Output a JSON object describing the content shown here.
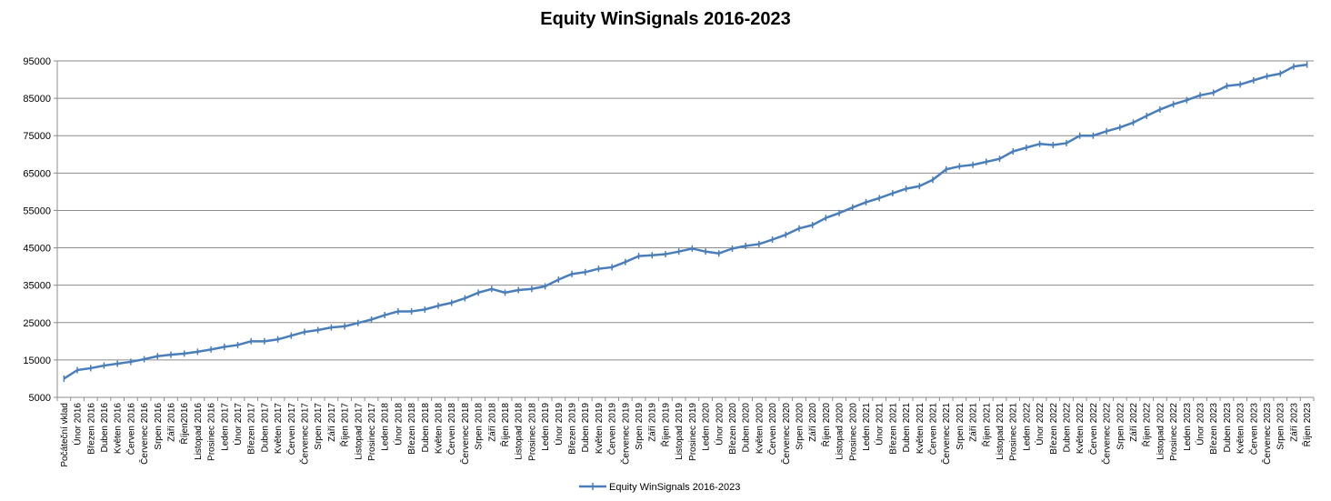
{
  "chart_data": {
    "type": "line",
    "title": "Equity WinSignals 2016-2023",
    "xlabel": "",
    "ylabel": "",
    "ylim": [
      5000,
      95000
    ],
    "yticks": [
      5000,
      15000,
      25000,
      35000,
      45000,
      55000,
      65000,
      75000,
      85000,
      95000
    ],
    "grid": true,
    "legend_position": "bottom",
    "line_color": "#4a7ebb",
    "categories": [
      "Počáteční vklad",
      "Únor 2016",
      "Březen 2016",
      "Duben 2016",
      "Květen 2016",
      "Červen 2016",
      "Červenec 2016",
      "Srpen 2016",
      "Září 2016",
      "Říjen2016",
      "Listopad 2016",
      "Prosinec 2016",
      "Leden 2017",
      "Únor 2017",
      "Březen 2017",
      "Duben 2017",
      "Květen 2017",
      "Červen 2017",
      "Červenec 2017",
      "Srpen 2017",
      "Září 2017",
      "Říjen 2017",
      "Listopad 2017",
      "Prosinec 2017",
      "Leden 2018",
      "Únor 2018",
      "Březen 2018",
      "Duben 2018",
      "Květen 2018",
      "Červen 2018",
      "Červenec 2018",
      "Srpen 2018",
      "Září 2018",
      "Říjen 2018",
      "Listopad 2018",
      "Prosinec 2018",
      "Leden 2019",
      "Únor 2019",
      "Březen 2019",
      "Duben 2019",
      "Květen 2019",
      "Červen 2019",
      "Červenec 2019",
      "Srpen 2019",
      "Září 2019",
      "Říjen 2019",
      "Listopad 2019",
      "Prosinec 2019",
      "Leden 2020",
      "Únor 2020",
      "Březen 2020",
      "Duben 2020",
      "Květen 2020",
      "Červen 2020",
      "Červenec 2020",
      "Srpen 2020",
      "Září 2020",
      "Říjen 2020",
      "Listopad 2020",
      "Prosinec 2020",
      "Leden 2021",
      "Únor 2021",
      "Březen 2021",
      "Duben 2021",
      "Květen 2021",
      "Červen 2021",
      "Červenec 2021",
      "Srpen 2021",
      "Září 2021",
      "Říjen 2021",
      "Listopad 2021",
      "Prosinec 2021",
      "Leden 2022",
      "Únor 2022",
      "Březen 2022",
      "Duben 2022",
      "Květen 2022",
      "Červen 2022",
      "Červenec 2022",
      "Srpen 2022",
      "Září 2022",
      "Říjen 2022",
      "Listopad 2022",
      "Prosinec 2022",
      "Leden 2023",
      "Únor 2023",
      "Březen 2023",
      "Duben 2023",
      "Květen 2023",
      "Červen 2023",
      "Červenec 2023",
      "Srpen 2023",
      "Září 2023",
      "Říjen 2023"
    ],
    "series": [
      {
        "name": "Equity WinSignals 2016-2023",
        "values": [
          10000,
          12300,
          12800,
          13500,
          14000,
          14500,
          15200,
          16000,
          16400,
          16700,
          17200,
          17800,
          18500,
          19000,
          20000,
          20000,
          20500,
          21500,
          22500,
          23000,
          23700,
          24000,
          24900,
          25800,
          27000,
          28000,
          28000,
          28500,
          29500,
          30300,
          31500,
          33000,
          34000,
          33000,
          33700,
          34000,
          34700,
          36500,
          38000,
          38500,
          39400,
          39800,
          41200,
          42800,
          43000,
          43300,
          44000,
          44800,
          44000,
          43500,
          44800,
          45500,
          46000,
          47200,
          48500,
          50200,
          51100,
          53000,
          54300,
          55800,
          57200,
          58300,
          59600,
          60800,
          61500,
          63200,
          66000,
          66800,
          67200,
          68000,
          68800,
          70800,
          71800,
          72800,
          72500,
          73000,
          75000,
          75000,
          76200,
          77200,
          78500,
          80300,
          82000,
          83400,
          84500,
          85800,
          86500,
          88300,
          88700,
          89800,
          90900,
          91600,
          93500,
          94000
        ]
      }
    ]
  }
}
